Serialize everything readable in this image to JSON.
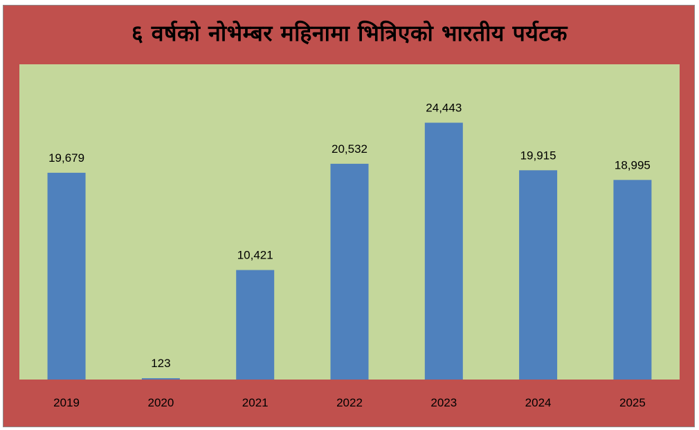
{
  "chart_data": {
    "type": "bar",
    "title": "६ वर्षको नोभेम्बर महिनामा भित्रिएको भारतीय पर्यटक",
    "xlabel": "",
    "ylabel": "",
    "categories": [
      "2019",
      "2020",
      "2021",
      "2022",
      "2023",
      "2024",
      "2025"
    ],
    "values": [
      19679,
      123,
      10421,
      20532,
      24443,
      19915,
      18995
    ],
    "value_labels": [
      "19,679",
      "123",
      "10,421",
      "20,532",
      "24,443",
      "19,915",
      "18,995"
    ],
    "ylim": [
      0,
      30000
    ],
    "grid": false,
    "legend": "none",
    "colors": {
      "frame_background": "#c0504d",
      "plot_background": "#c4d79b",
      "bar": "#4f81bd"
    }
  }
}
